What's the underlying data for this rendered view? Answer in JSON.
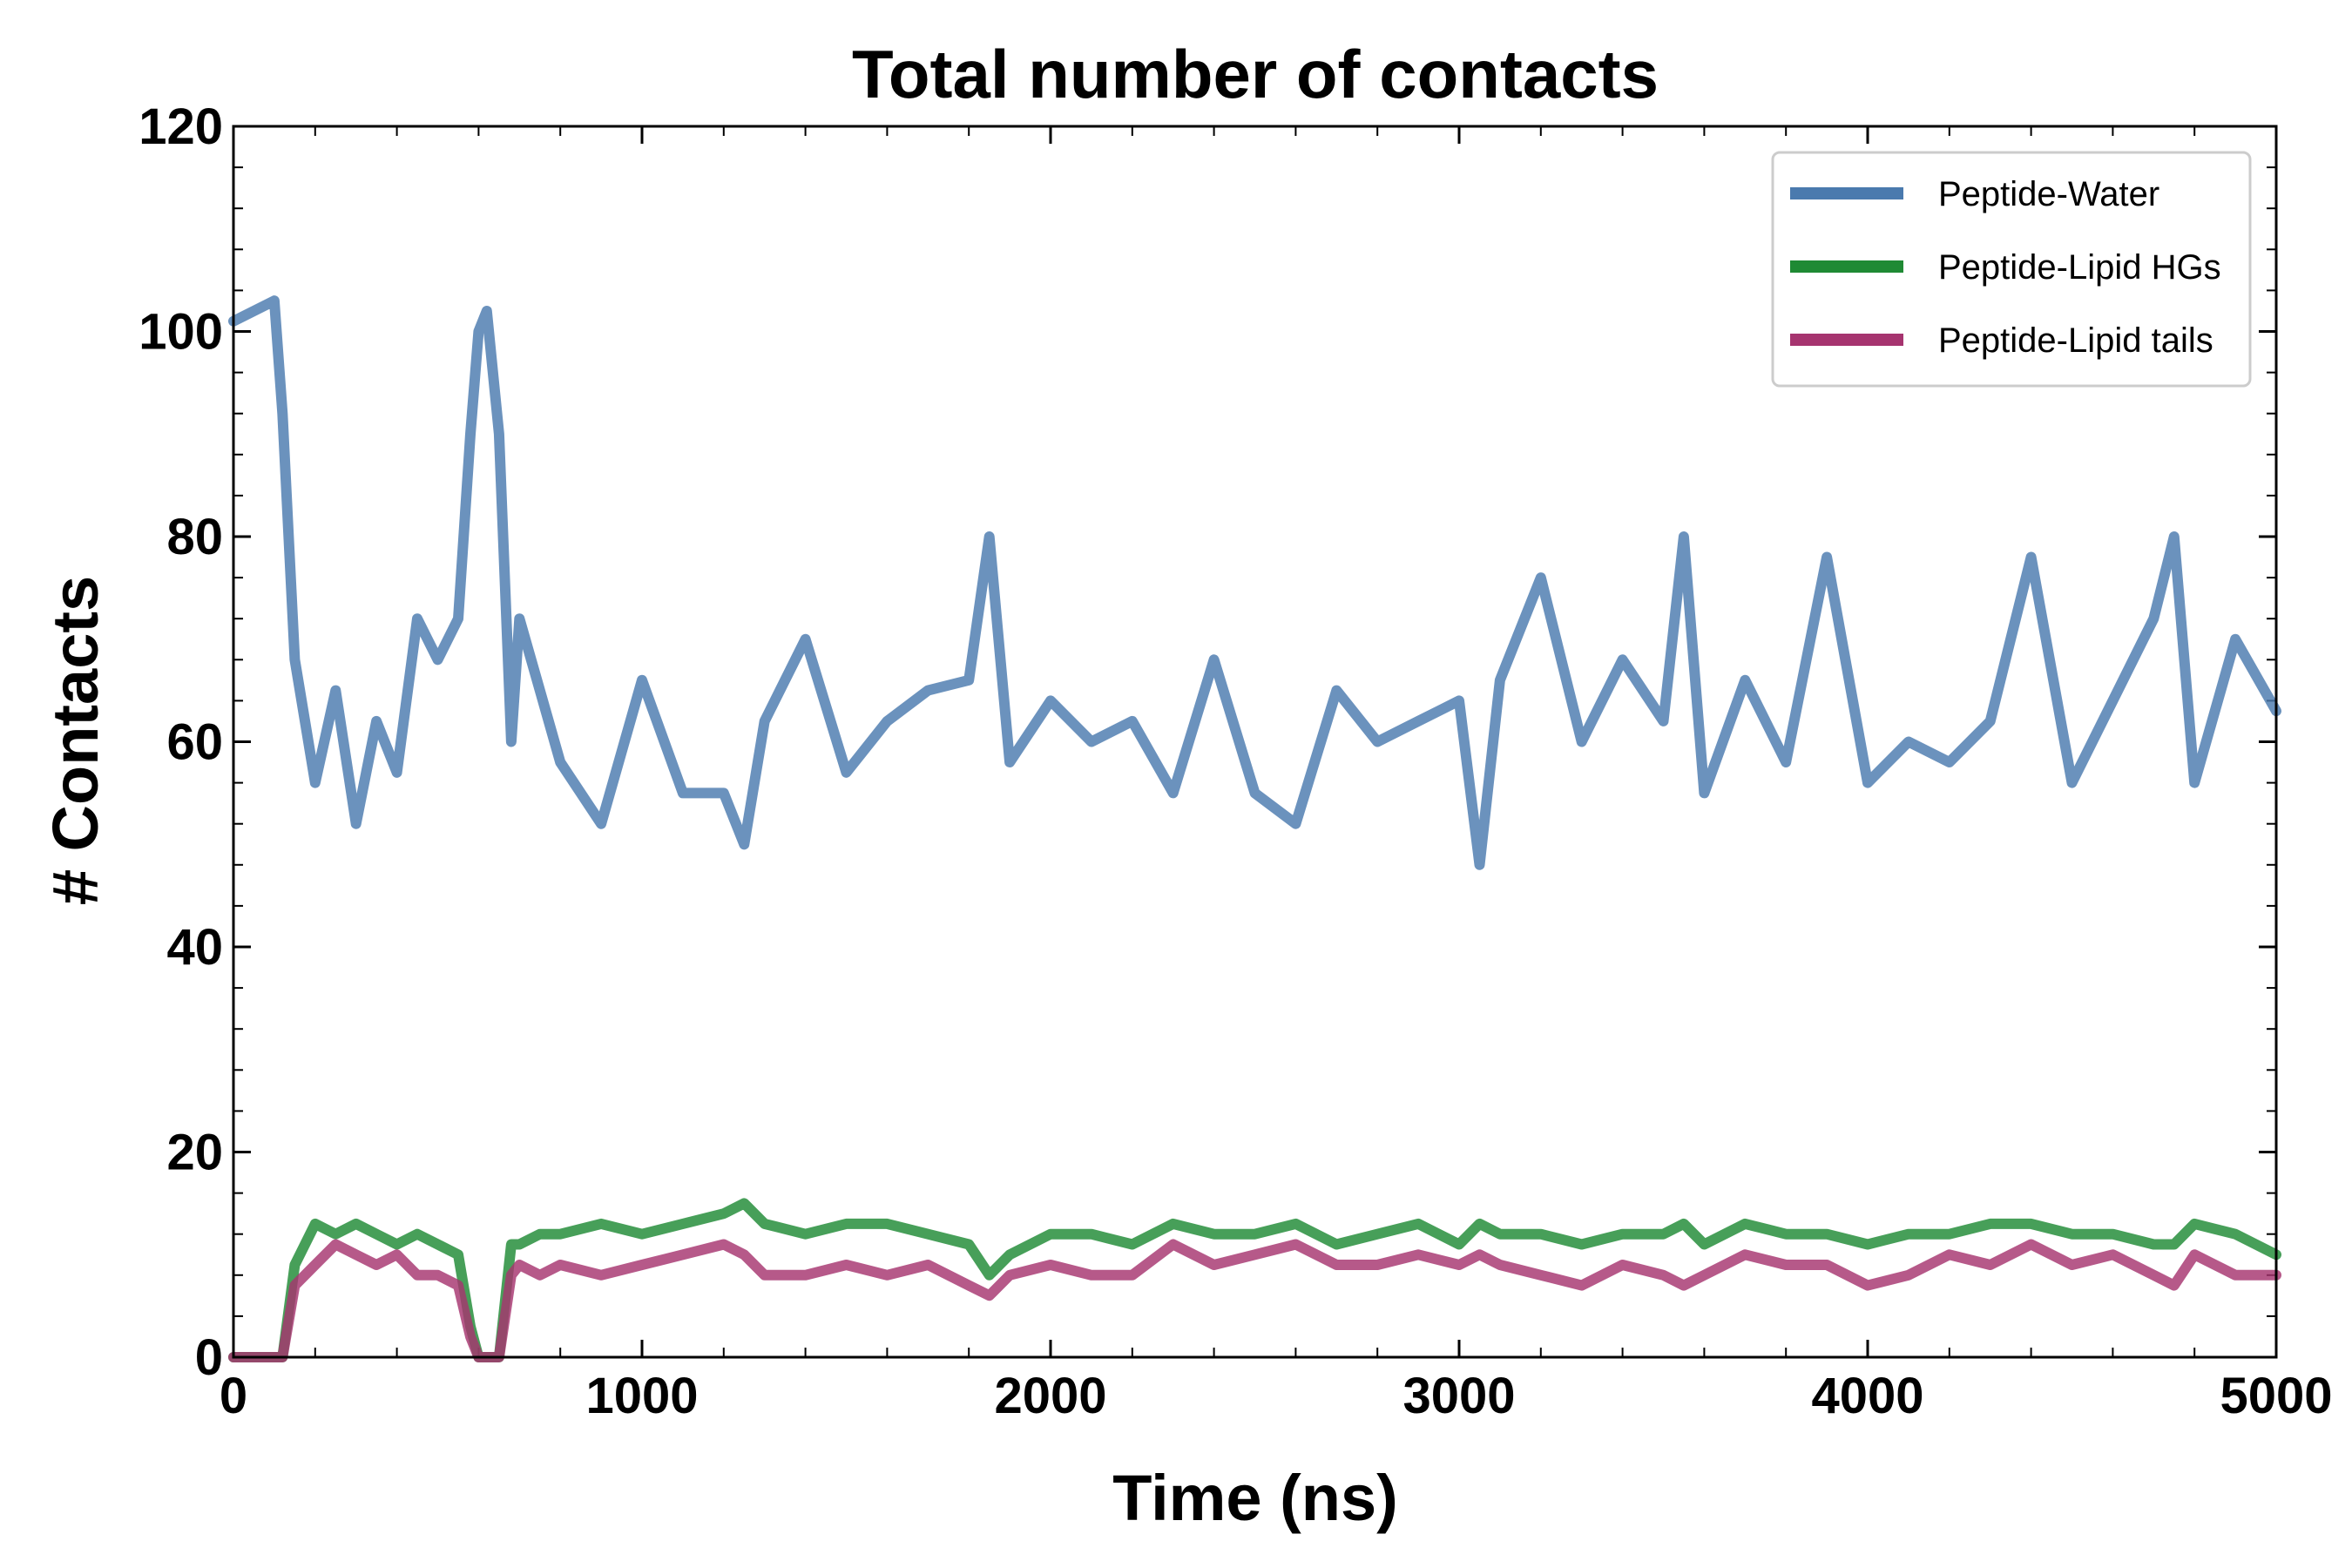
{
  "chart_data": {
    "type": "line",
    "title": "Total number of contacts",
    "xlabel": "Time (ns)",
    "ylabel": "# Contacts",
    "xlim": [
      0,
      5000
    ],
    "ylim": [
      0,
      120
    ],
    "xticks": [
      0,
      1000,
      2000,
      3000,
      4000,
      5000
    ],
    "xtick_labels": [
      "0",
      "1000",
      "2000",
      "3000",
      "4000",
      "5000"
    ],
    "yticks": [
      0,
      20,
      40,
      60,
      80,
      100,
      120
    ],
    "ytick_labels": [
      "0",
      "20",
      "40",
      "60",
      "80",
      "100",
      "120"
    ],
    "grid": false,
    "legend_position": "top-right",
    "x": [
      0,
      100,
      120,
      150,
      200,
      250,
      300,
      350,
      400,
      450,
      500,
      550,
      580,
      600,
      620,
      650,
      680,
      700,
      750,
      800,
      900,
      1000,
      1100,
      1200,
      1250,
      1300,
      1400,
      1500,
      1600,
      1700,
      1800,
      1850,
      1900,
      2000,
      2100,
      2200,
      2300,
      2400,
      2500,
      2600,
      2700,
      2800,
      2900,
      3000,
      3050,
      3100,
      3200,
      3300,
      3400,
      3500,
      3550,
      3600,
      3700,
      3800,
      3900,
      4000,
      4100,
      4200,
      4300,
      4400,
      4500,
      4600,
      4700,
      4750,
      4800,
      4900,
      5000
    ],
    "series": [
      {
        "name": "Peptide-Water",
        "color": "#4a7aae",
        "values": [
          101,
          103,
          92,
          68,
          56,
          65,
          52,
          62,
          57,
          72,
          68,
          72,
          90,
          100,
          102,
          90,
          60,
          72,
          65,
          58,
          52,
          66,
          55,
          55,
          50,
          62,
          70,
          57,
          62,
          65,
          66,
          80,
          58,
          64,
          60,
          62,
          55,
          68,
          55,
          52,
          65,
          60,
          62,
          64,
          48,
          66,
          76,
          60,
          68,
          62,
          80,
          55,
          66,
          58,
          78,
          56,
          60,
          58,
          62,
          78,
          56,
          64,
          72,
          80,
          56,
          70,
          63
        ]
      },
      {
        "name": "Peptide-Lipid HGs",
        "color": "#1f8a34",
        "values": [
          0,
          0,
          0,
          9,
          13,
          12,
          13,
          12,
          11,
          12,
          11,
          10,
          3,
          0,
          0,
          0,
          11,
          11,
          12,
          12,
          13,
          12,
          13,
          14,
          15,
          13,
          12,
          13,
          13,
          12,
          11,
          8,
          10,
          12,
          12,
          11,
          13,
          12,
          12,
          13,
          11,
          12,
          13,
          11,
          13,
          12,
          12,
          11,
          12,
          12,
          13,
          11,
          13,
          12,
          12,
          11,
          12,
          12,
          13,
          13,
          12,
          12,
          11,
          11,
          13,
          12,
          10
        ]
      },
      {
        "name": "Peptide-Lipid tails",
        "color": "#a6346f",
        "values": [
          0,
          0,
          0,
          7,
          9,
          11,
          10,
          9,
          10,
          8,
          8,
          7,
          2,
          0,
          0,
          0,
          8,
          9,
          8,
          9,
          8,
          9,
          10,
          11,
          10,
          8,
          8,
          9,
          8,
          9,
          7,
          6,
          8,
          9,
          8,
          8,
          11,
          9,
          10,
          11,
          9,
          9,
          10,
          9,
          10,
          9,
          8,
          7,
          9,
          8,
          7,
          8,
          10,
          9,
          9,
          7,
          8,
          10,
          9,
          11,
          9,
          10,
          8,
          7,
          10,
          8,
          8
        ]
      }
    ]
  }
}
